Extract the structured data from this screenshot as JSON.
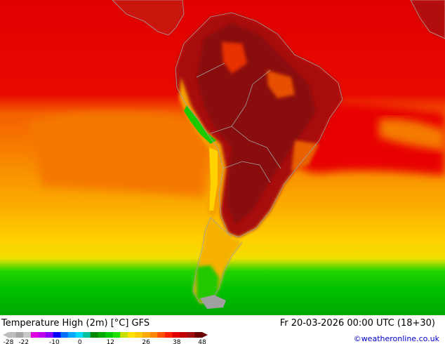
{
  "map": {
    "region": "South America",
    "colors": {
      "deep_red": "#8a0a0a",
      "red_dark": "#a81010",
      "red": "#e00000",
      "red_orange": "#f03c00",
      "orange": "#f57d00",
      "amber": "#fbaa00",
      "yellow": "#ffd200",
      "green": "#00c800",
      "green_dark": "#00a000",
      "land_outline": "#a0a0a0"
    }
  },
  "footer": {
    "title": "Temperature High (2m) [°C] GFS",
    "valid_time": "Fr 20-03-2026 00:00 UTC (18+30)",
    "credit": "©weatheronline.co.uk"
  },
  "legend": {
    "tick_labels": [
      "-28",
      "-22",
      "-10",
      "0",
      "12",
      "26",
      "38",
      "48"
    ],
    "swatches": [
      "#bebebe",
      "#a6a6a6",
      "#c8c8c8",
      "#dd00dd",
      "#bb00ee",
      "#8800ff",
      "#0000ff",
      "#0070ff",
      "#00a8ff",
      "#00d8ff",
      "#00c0a0",
      "#008800",
      "#00a800",
      "#00c800",
      "#22e000",
      "#c8e000",
      "#ffe000",
      "#ffc800",
      "#ffaa00",
      "#ff8800",
      "#ff5000",
      "#ff2000",
      "#e00000",
      "#c00000",
      "#a01010",
      "#6a0000"
    ]
  }
}
